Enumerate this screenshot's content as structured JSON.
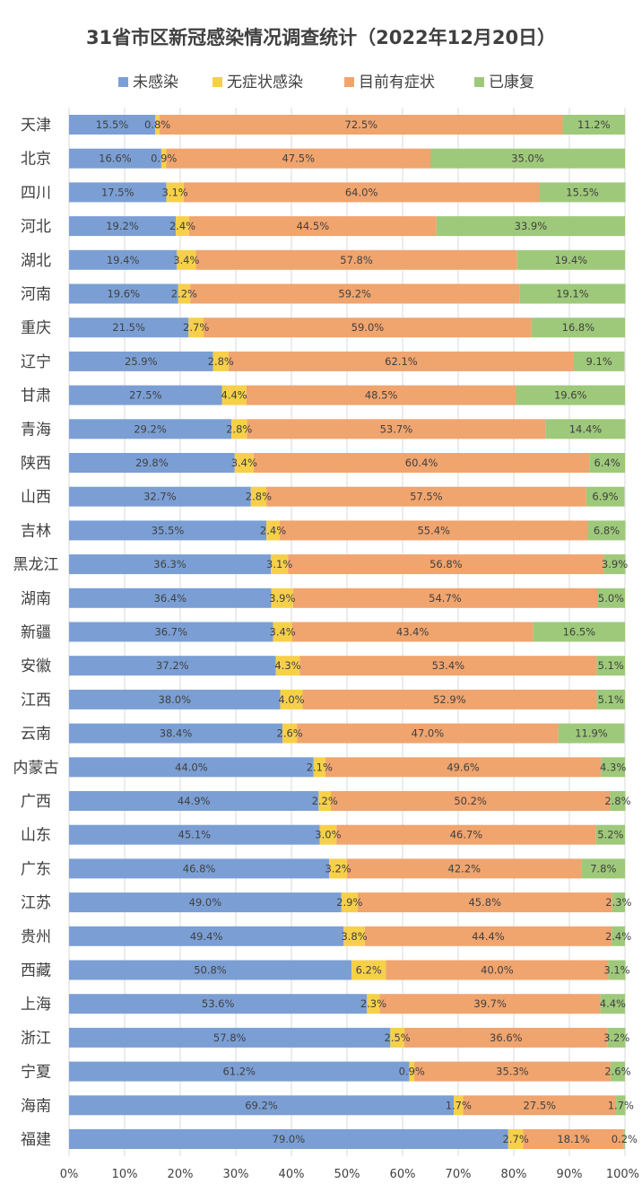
{
  "chart_data": {
    "type": "bar",
    "orientation": "horizontal",
    "stacked": "percent",
    "title": "31省市区新冠感染情况调查统计（2022年12月20日）",
    "xlim": [
      0,
      100
    ],
    "x_ticks": [
      "0%",
      "10%",
      "20%",
      "30%",
      "40%",
      "50%",
      "60%",
      "70%",
      "80%",
      "90%",
      "100%"
    ],
    "grid": true,
    "legend_position": "top",
    "categories": [
      "天津",
      "北京",
      "四川",
      "河北",
      "湖北",
      "河南",
      "重庆",
      "辽宁",
      "甘肃",
      "青海",
      "陕西",
      "山西",
      "吉林",
      "黑龙江",
      "湖南",
      "新疆",
      "安徽",
      "江西",
      "云南",
      "内蒙古",
      "广西",
      "山东",
      "广东",
      "江苏",
      "贵州",
      "西藏",
      "上海",
      "浙江",
      "宁夏",
      "海南",
      "福建"
    ],
    "series": [
      {
        "name": "未感染",
        "color": "#7b9fd4",
        "values": [
          15.5,
          16.6,
          17.5,
          19.2,
          19.4,
          19.6,
          21.5,
          25.9,
          27.5,
          29.2,
          29.8,
          32.7,
          35.5,
          36.3,
          36.4,
          36.7,
          37.2,
          38.0,
          38.4,
          44.0,
          44.9,
          45.1,
          46.8,
          49.0,
          49.4,
          50.8,
          53.6,
          57.8,
          61.2,
          69.2,
          79.0
        ]
      },
      {
        "name": "无症状感染",
        "color": "#f7d04a",
        "values": [
          0.8,
          0.9,
          3.1,
          2.4,
          3.4,
          2.2,
          2.7,
          2.8,
          4.4,
          2.8,
          3.4,
          2.8,
          2.4,
          3.1,
          3.9,
          3.4,
          4.3,
          4.0,
          2.6,
          2.1,
          2.2,
          3.0,
          3.2,
          2.9,
          3.8,
          6.2,
          2.3,
          2.5,
          0.9,
          1.7,
          2.7
        ]
      },
      {
        "name": "目前有症状",
        "color": "#f0a46e",
        "values": [
          72.5,
          47.5,
          64.0,
          44.5,
          57.8,
          59.2,
          59.0,
          62.1,
          48.5,
          53.7,
          60.4,
          57.5,
          55.4,
          56.8,
          54.7,
          43.4,
          53.4,
          52.9,
          47.0,
          49.6,
          50.2,
          46.7,
          42.2,
          45.8,
          44.4,
          40.0,
          39.7,
          36.6,
          35.3,
          27.5,
          18.1
        ]
      },
      {
        "name": "已康复",
        "color": "#9ec97a",
        "values": [
          11.2,
          35.0,
          15.5,
          33.9,
          19.4,
          19.1,
          16.8,
          9.1,
          19.6,
          14.4,
          6.4,
          6.9,
          6.8,
          3.9,
          5.0,
          16.5,
          5.1,
          5.1,
          11.9,
          4.3,
          2.8,
          5.2,
          7.8,
          2.3,
          2.4,
          3.1,
          4.4,
          3.2,
          2.6,
          1.7,
          0.2
        ]
      }
    ]
  }
}
